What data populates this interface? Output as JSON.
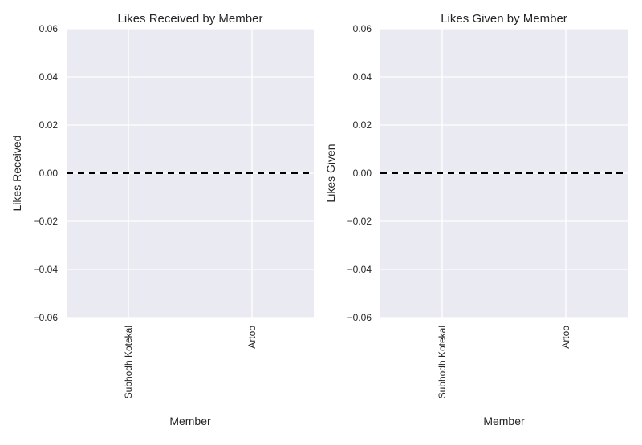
{
  "chart_data": [
    {
      "type": "bar",
      "title": "Likes Received by Member",
      "xlabel": "Member",
      "ylabel": "Likes Received",
      "categories": [
        "Subhodh Kotekal",
        "Artoo"
      ],
      "values": [
        0,
        0
      ],
      "ylim": [
        -0.06,
        0.06
      ],
      "yticks": [
        "0.06",
        "0.04",
        "0.02",
        "0.00",
        "−0.02",
        "−0.04",
        "−0.06"
      ],
      "reference_line": {
        "y": 0,
        "style": "dashed",
        "color": "#000000"
      },
      "grid": true
    },
    {
      "type": "bar",
      "title": "Likes Given by Member",
      "xlabel": "Member",
      "ylabel": "Likes Given",
      "categories": [
        "Subhodh Kotekal",
        "Artoo"
      ],
      "values": [
        0,
        0
      ],
      "ylim": [
        -0.06,
        0.06
      ],
      "yticks": [
        "0.06",
        "0.04",
        "0.02",
        "0.00",
        "−0.02",
        "−0.04",
        "−0.06"
      ],
      "reference_line": {
        "y": 0,
        "style": "dashed",
        "color": "#000000"
      },
      "grid": true
    }
  ],
  "colors": {
    "plot_background": "#eaeaf2",
    "grid": "#ffffff",
    "reference_line": "#000000"
  }
}
